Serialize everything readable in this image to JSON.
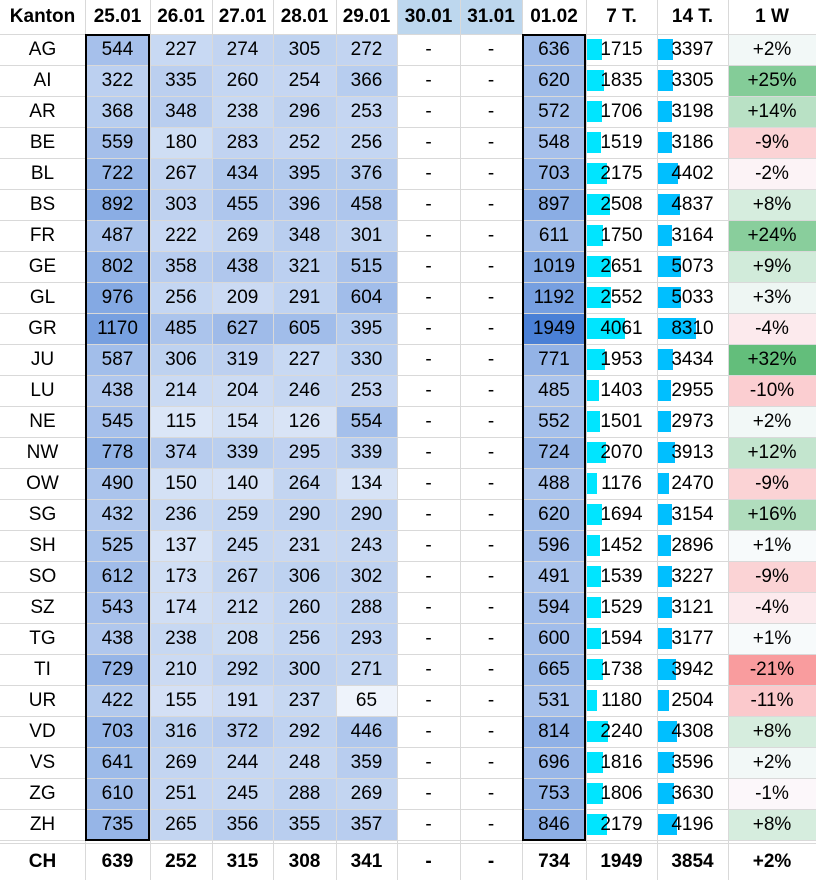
{
  "chart_data": {
    "type": "table",
    "columns": [
      "Kanton",
      "25.01",
      "26.01",
      "27.01",
      "28.01",
      "29.01",
      "30.01",
      "31.01",
      "01.02",
      "7 T.",
      "14 T.",
      "1 W"
    ],
    "rows": [
      {
        "kanton": "AG",
        "days": [
          544,
          227,
          274,
          305,
          272,
          "-",
          "-",
          636
        ],
        "t7": 1715,
        "t14": 3397,
        "w1": "+2%",
        "w1v": 2
      },
      {
        "kanton": "AI",
        "days": [
          322,
          335,
          260,
          254,
          366,
          "-",
          "-",
          620
        ],
        "t7": 1835,
        "t14": 3305,
        "w1": "+25%",
        "w1v": 25
      },
      {
        "kanton": "AR",
        "days": [
          368,
          348,
          238,
          296,
          253,
          "-",
          "-",
          572
        ],
        "t7": 1706,
        "t14": 3198,
        "w1": "+14%",
        "w1v": 14
      },
      {
        "kanton": "BE",
        "days": [
          559,
          180,
          283,
          252,
          256,
          "-",
          "-",
          548
        ],
        "t7": 1519,
        "t14": 3186,
        "w1": "-9%",
        "w1v": -9
      },
      {
        "kanton": "BL",
        "days": [
          722,
          267,
          434,
          395,
          376,
          "-",
          "-",
          703
        ],
        "t7": 2175,
        "t14": 4402,
        "w1": "-2%",
        "w1v": -2
      },
      {
        "kanton": "BS",
        "days": [
          892,
          303,
          455,
          396,
          458,
          "-",
          "-",
          897
        ],
        "t7": 2508,
        "t14": 4837,
        "w1": "+8%",
        "w1v": 8
      },
      {
        "kanton": "FR",
        "days": [
          487,
          222,
          269,
          348,
          301,
          "-",
          "-",
          611
        ],
        "t7": 1750,
        "t14": 3164,
        "w1": "+24%",
        "w1v": 24
      },
      {
        "kanton": "GE",
        "days": [
          802,
          358,
          438,
          321,
          515,
          "-",
          "-",
          1019
        ],
        "t7": 2651,
        "t14": 5073,
        "w1": "+9%",
        "w1v": 9
      },
      {
        "kanton": "GL",
        "days": [
          976,
          256,
          209,
          291,
          604,
          "-",
          "-",
          1192
        ],
        "t7": 2552,
        "t14": 5033,
        "w1": "+3%",
        "w1v": 3
      },
      {
        "kanton": "GR",
        "days": [
          1170,
          485,
          627,
          605,
          395,
          "-",
          "-",
          1949
        ],
        "t7": 4061,
        "t14": 8310,
        "w1": "-4%",
        "w1v": -4
      },
      {
        "kanton": "JU",
        "days": [
          587,
          306,
          319,
          227,
          330,
          "-",
          "-",
          771
        ],
        "t7": 1953,
        "t14": 3434,
        "w1": "+32%",
        "w1v": 32
      },
      {
        "kanton": "LU",
        "days": [
          438,
          214,
          204,
          246,
          253,
          "-",
          "-",
          485
        ],
        "t7": 1403,
        "t14": 2955,
        "w1": "-10%",
        "w1v": -10
      },
      {
        "kanton": "NE",
        "days": [
          545,
          115,
          154,
          126,
          554,
          "-",
          "-",
          552
        ],
        "t7": 1501,
        "t14": 2973,
        "w1": "+2%",
        "w1v": 2
      },
      {
        "kanton": "NW",
        "days": [
          778,
          374,
          339,
          295,
          339,
          "-",
          "-",
          724
        ],
        "t7": 2070,
        "t14": 3913,
        "w1": "+12%",
        "w1v": 12
      },
      {
        "kanton": "OW",
        "days": [
          490,
          150,
          140,
          264,
          134,
          "-",
          "-",
          488
        ],
        "t7": 1176,
        "t14": 2470,
        "w1": "-9%",
        "w1v": -9
      },
      {
        "kanton": "SG",
        "days": [
          432,
          236,
          259,
          290,
          290,
          "-",
          "-",
          620
        ],
        "t7": 1694,
        "t14": 3154,
        "w1": "+16%",
        "w1v": 16
      },
      {
        "kanton": "SH",
        "days": [
          525,
          137,
          245,
          231,
          243,
          "-",
          "-",
          596
        ],
        "t7": 1452,
        "t14": 2896,
        "w1": "+1%",
        "w1v": 1
      },
      {
        "kanton": "SO",
        "days": [
          612,
          173,
          267,
          306,
          302,
          "-",
          "-",
          491
        ],
        "t7": 1539,
        "t14": 3227,
        "w1": "-9%",
        "w1v": -9
      },
      {
        "kanton": "SZ",
        "days": [
          543,
          174,
          212,
          260,
          288,
          "-",
          "-",
          594
        ],
        "t7": 1529,
        "t14": 3121,
        "w1": "-4%",
        "w1v": -4
      },
      {
        "kanton": "TG",
        "days": [
          438,
          238,
          208,
          256,
          293,
          "-",
          "-",
          600
        ],
        "t7": 1594,
        "t14": 3177,
        "w1": "+1%",
        "w1v": 1
      },
      {
        "kanton": "TI",
        "days": [
          729,
          210,
          292,
          300,
          271,
          "-",
          "-",
          665
        ],
        "t7": 1738,
        "t14": 3942,
        "w1": "-21%",
        "w1v": -21
      },
      {
        "kanton": "UR",
        "days": [
          422,
          155,
          191,
          237,
          65,
          "-",
          "-",
          531
        ],
        "t7": 1180,
        "t14": 2504,
        "w1": "-11%",
        "w1v": -11
      },
      {
        "kanton": "VD",
        "days": [
          703,
          316,
          372,
          292,
          446,
          "-",
          "-",
          814
        ],
        "t7": 2240,
        "t14": 4308,
        "w1": "+8%",
        "w1v": 8
      },
      {
        "kanton": "VS",
        "days": [
          641,
          269,
          244,
          248,
          359,
          "-",
          "-",
          696
        ],
        "t7": 1816,
        "t14": 3596,
        "w1": "+2%",
        "w1v": 2
      },
      {
        "kanton": "ZG",
        "days": [
          610,
          251,
          245,
          288,
          269,
          "-",
          "-",
          753
        ],
        "t7": 1806,
        "t14": 3630,
        "w1": "-1%",
        "w1v": -1
      },
      {
        "kanton": "ZH",
        "days": [
          735,
          265,
          356,
          355,
          357,
          "-",
          "-",
          846
        ],
        "t7": 2179,
        "t14": 4196,
        "w1": "+8%",
        "w1v": 8
      }
    ],
    "total": {
      "kanton": "CH",
      "days": [
        639,
        252,
        315,
        308,
        341,
        "-",
        "-",
        734
      ],
      "t7": 1949,
      "t14": 3854,
      "w1": "+2%"
    },
    "colors": {
      "heat_low": "#eef3fb",
      "heat_high": "#4a80d6",
      "highlight_header": "#bdd7ee",
      "bar": "#00e5ff",
      "bar_t14": "#00bfff",
      "pos_strong": "#63be7b",
      "neg_strong": "#f8696b",
      "neutral": "#fcfcff"
    }
  }
}
